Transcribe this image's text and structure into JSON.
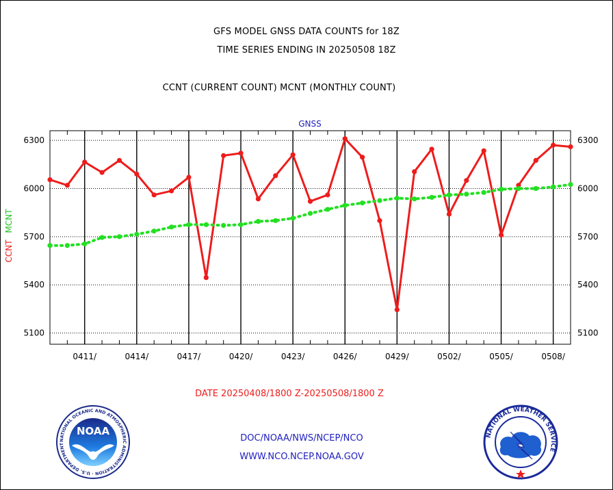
{
  "header": {
    "line1": "GFS MODEL GNSS DATA COUNTS for 18Z",
    "line2": "TIME SERIES ENDING IN 20250508 18Z",
    "line3": "CCNT (CURRENT COUNT) MCNT (MONTHLY COUNT)"
  },
  "chart_data": {
    "type": "line",
    "title": "GNSS",
    "ylabel_ccnt": "CCNT",
    "ylabel_mcnt": "MCNT",
    "xlabel": "DATE 20250408/1800 Z-20250508/1800 Z",
    "ylim": [
      5030,
      6360
    ],
    "xlim": [
      0,
      30
    ],
    "y_ticks": [
      5100,
      5400,
      5700,
      6000,
      6300
    ],
    "y_tick_labels": [
      "5100",
      "5400",
      "5700",
      "6000",
      "6300"
    ],
    "x_ticks": [
      2,
      5,
      8,
      11,
      14,
      17,
      20,
      23,
      26,
      29
    ],
    "x_tick_labels": [
      "0411/",
      "0414/",
      "0417/",
      "0420/",
      "0423/",
      "0426/",
      "0429/",
      "0502/",
      "0505/",
      "0508/"
    ],
    "grid": true,
    "series": [
      {
        "name": "CCNT",
        "color": "#ee1c1c",
        "style": "solid",
        "x": [
          0,
          1,
          2,
          3,
          4,
          5,
          6,
          7,
          8,
          9,
          10,
          11,
          12,
          13,
          14,
          15,
          16,
          17,
          18,
          19,
          20,
          21,
          22,
          23,
          24,
          25,
          26,
          27,
          28,
          29,
          30
        ],
        "values": [
          6055,
          6020,
          6165,
          6100,
          6175,
          6090,
          5960,
          5985,
          6070,
          5445,
          6205,
          6220,
          5935,
          6080,
          6210,
          5920,
          5960,
          6310,
          6195,
          5800,
          5245,
          6105,
          6245,
          5840,
          6050,
          6235,
          5710,
          6020,
          6175,
          6270,
          6260
        ]
      },
      {
        "name": "MCNT",
        "color": "#22e022",
        "style": "dotted",
        "x": [
          0,
          1,
          2,
          3,
          4,
          5,
          6,
          7,
          8,
          9,
          10,
          11,
          12,
          13,
          14,
          15,
          16,
          17,
          18,
          19,
          20,
          21,
          22,
          23,
          24,
          25,
          26,
          27,
          28,
          29,
          30
        ],
        "values": [
          5645,
          5645,
          5655,
          5695,
          5700,
          5715,
          5735,
          5760,
          5775,
          5775,
          5770,
          5775,
          5795,
          5800,
          5815,
          5845,
          5870,
          5895,
          5910,
          5925,
          5940,
          5935,
          5945,
          5960,
          5965,
          5975,
          5995,
          6000,
          6000,
          6010,
          6025
        ]
      }
    ]
  },
  "footer": {
    "line1": "DOC/NOAA/NWS/NCEP/NCO",
    "line2": "WWW.NCO.NCEP.NOAA.GOV"
  },
  "logos": {
    "noaa_center": "NOAA",
    "noaa_ring": "NATIONAL OCEANIC AND ATMOSPHERIC ADMINISTRATION · U.S. DEPARTMENT OF COMMERCE",
    "nws_ring": "NATIONAL WEATHER SERVICE"
  },
  "colors": {
    "ccnt": "#ee1c1c",
    "mcnt": "#22e022",
    "title_blue": "#2020c0"
  }
}
